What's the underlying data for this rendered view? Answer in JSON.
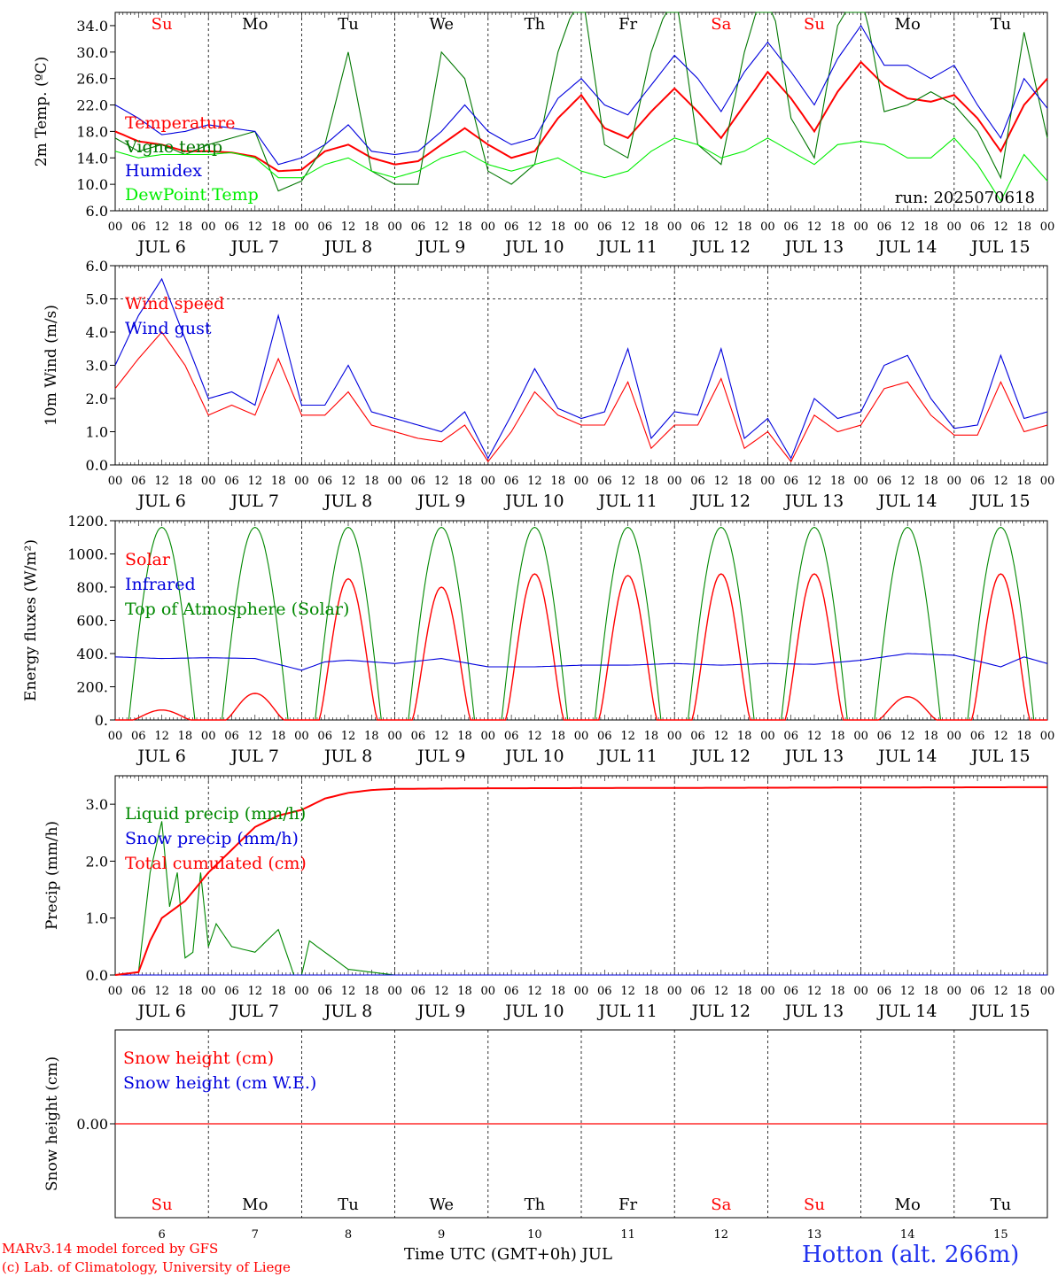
{
  "chart_data": [
    {
      "type": "line",
      "ylabel": "2m Temp. (ºC)",
      "yticks": [
        "6.0",
        "10.0",
        "14.0",
        "18.0",
        "22.0",
        "26.0",
        "30.0",
        "34.0"
      ],
      "ytick_values": [
        6,
        10,
        14,
        18,
        22,
        26,
        30,
        34
      ],
      "ylim": [
        6,
        36
      ],
      "weekdays": [
        "Su",
        "Mo",
        "Tu",
        "We",
        "Th",
        "Fr",
        "Sa",
        "Su",
        "Mo",
        "Tu"
      ],
      "weekday_colors": [
        "#ff0000",
        "#000000",
        "#000000",
        "#000000",
        "#000000",
        "#000000",
        "#ff0000",
        "#ff0000",
        "#000000",
        "#000000"
      ],
      "annotation": "run: 2025070618",
      "series": [
        {
          "name": "Temperature",
          "color": "#ff0000",
          "x": [
            0,
            6,
            12,
            18,
            24,
            30,
            36,
            42,
            48,
            54,
            60,
            66,
            72,
            78,
            84,
            90,
            96,
            102,
            108,
            114,
            120,
            126,
            132,
            138,
            144,
            150,
            156,
            162,
            168,
            174,
            180,
            186,
            192,
            198,
            204,
            210,
            216,
            222,
            228,
            234,
            240
          ],
          "values": [
            18,
            16.5,
            16,
            15,
            15,
            14.8,
            14.2,
            12,
            12.2,
            15,
            16,
            14,
            13,
            13.5,
            16,
            18.5,
            16,
            14,
            15,
            20,
            23.5,
            18.5,
            17,
            21,
            24.5,
            21,
            17,
            22,
            27,
            23,
            18,
            24,
            28.5,
            25,
            23,
            22.5,
            23.5,
            20,
            15,
            22,
            26
          ]
        },
        {
          "name": "Vigne temp",
          "color": "#007700",
          "x": [
            0,
            6,
            12,
            18,
            24,
            30,
            36,
            42,
            48,
            54,
            60,
            66,
            72,
            78,
            84,
            90,
            96,
            102,
            108,
            114,
            120,
            126,
            132,
            138,
            144,
            150,
            156,
            162,
            168,
            174,
            180,
            186,
            192,
            198,
            204,
            210,
            216,
            222,
            228,
            234,
            240
          ],
          "values": [
            17,
            15,
            16,
            14.5,
            16,
            17,
            18,
            9,
            10.5,
            16,
            30,
            12,
            10,
            10,
            30,
            26,
            12,
            10,
            13,
            30,
            40,
            16,
            14,
            30,
            40,
            16,
            13,
            30,
            42,
            20,
            14,
            34,
            40,
            21,
            22,
            24,
            22,
            18,
            11,
            33,
            17
          ]
        },
        {
          "name": "Humidex",
          "color": "#0000dd",
          "x": [
            0,
            6,
            12,
            18,
            24,
            30,
            36,
            42,
            48,
            54,
            60,
            66,
            72,
            78,
            84,
            90,
            96,
            102,
            108,
            114,
            120,
            126,
            132,
            138,
            144,
            150,
            156,
            162,
            168,
            174,
            180,
            186,
            192,
            198,
            204,
            210,
            216,
            222,
            228,
            234,
            240
          ],
          "values": [
            22,
            20,
            17.5,
            18,
            19,
            18.5,
            18,
            13,
            14,
            16,
            19,
            15,
            14.5,
            15,
            18,
            22,
            18,
            16,
            17,
            23,
            26,
            22,
            20.5,
            25,
            29.5,
            26,
            21,
            27,
            31.5,
            27,
            22,
            29,
            34,
            28,
            28,
            26,
            28,
            22,
            17,
            26,
            21.5
          ]
        },
        {
          "name": "DewPoint Temp",
          "color": "#00ee00",
          "x": [
            0,
            6,
            12,
            18,
            24,
            30,
            36,
            42,
            48,
            54,
            60,
            66,
            72,
            78,
            84,
            90,
            96,
            102,
            108,
            114,
            120,
            126,
            132,
            138,
            144,
            150,
            156,
            162,
            168,
            174,
            180,
            186,
            192,
            198,
            204,
            210,
            216,
            222,
            228,
            234,
            240
          ],
          "values": [
            15,
            14,
            14.5,
            14.5,
            14.5,
            14.8,
            14,
            11,
            11,
            13,
            14,
            12,
            11,
            12,
            14,
            15,
            13,
            12,
            13,
            14,
            12,
            11,
            12,
            15,
            17,
            16,
            14,
            15,
            17,
            15,
            13,
            16,
            16.5,
            16,
            14,
            14,
            17,
            13,
            7.5,
            14.5,
            10.5
          ]
        }
      ]
    },
    {
      "type": "line",
      "ylabel": "10m Wind (m/s)",
      "yticks": [
        "0.0",
        "1.0",
        "2.0",
        "3.0",
        "4.0",
        "5.0",
        "6.0"
      ],
      "ytick_values": [
        0,
        1,
        2,
        3,
        4,
        5,
        6
      ],
      "ylim": [
        0,
        6
      ],
      "series": [
        {
          "name": "Wind speed",
          "color": "#ff0000",
          "x": [
            0,
            6,
            12,
            18,
            24,
            30,
            36,
            42,
            48,
            54,
            60,
            66,
            72,
            78,
            84,
            90,
            96,
            102,
            108,
            114,
            120,
            126,
            132,
            138,
            144,
            150,
            156,
            162,
            168,
            174,
            180,
            186,
            192,
            198,
            204,
            210,
            216,
            222,
            228,
            234,
            240
          ],
          "values": [
            2.3,
            3.2,
            4,
            3,
            1.5,
            1.8,
            1.5,
            3.2,
            1.5,
            1.5,
            2.2,
            1.2,
            1,
            0.8,
            0.7,
            1.2,
            0.1,
            1,
            2.2,
            1.5,
            1.2,
            1.2,
            2.5,
            0.5,
            1.2,
            1.2,
            2.6,
            0.5,
            1,
            0.1,
            1.5,
            1,
            1.2,
            2.3,
            2.5,
            1.5,
            0.9,
            0.9,
            2.5,
            1,
            1.2
          ]
        },
        {
          "name": "Wind gust",
          "color": "#0000dd",
          "x": [
            0,
            6,
            12,
            18,
            24,
            30,
            36,
            42,
            48,
            54,
            60,
            66,
            72,
            78,
            84,
            90,
            96,
            102,
            108,
            114,
            120,
            126,
            132,
            138,
            144,
            150,
            156,
            162,
            168,
            174,
            180,
            186,
            192,
            198,
            204,
            210,
            216,
            222,
            228,
            234,
            240
          ],
          "values": [
            3,
            4.5,
            5.6,
            3.8,
            2,
            2.2,
            1.8,
            4.5,
            1.8,
            1.8,
            3,
            1.6,
            1.4,
            1.2,
            1,
            1.6,
            0.2,
            1.5,
            2.9,
            1.7,
            1.4,
            1.6,
            3.5,
            0.8,
            1.6,
            1.5,
            3.5,
            0.8,
            1.4,
            0.2,
            2,
            1.4,
            1.6,
            3,
            3.3,
            2,
            1.1,
            1.2,
            3.3,
            1.4,
            1.6
          ]
        }
      ]
    },
    {
      "type": "line",
      "ylabel": "Energy fluxes (W/m²)",
      "yticks": [
        "0.",
        "200.",
        "400.",
        "600.",
        "800.",
        "1000.",
        "1200."
      ],
      "ytick_values": [
        0,
        200,
        400,
        600,
        800,
        1000,
        1200
      ],
      "ylim": [
        0,
        1200
      ],
      "solar_peaks": [
        60,
        160,
        850,
        800,
        880,
        870,
        880,
        880,
        140,
        880
      ],
      "series": [
        {
          "name": "Solar",
          "color": "#ff0000"
        },
        {
          "name": "Infrared",
          "color": "#0000dd",
          "x": [
            0,
            12,
            24,
            36,
            48,
            54,
            60,
            72,
            84,
            96,
            108,
            120,
            132,
            144,
            156,
            168,
            180,
            192,
            204,
            216,
            228,
            234,
            240
          ],
          "values": [
            380,
            370,
            375,
            370,
            300,
            350,
            360,
            340,
            370,
            320,
            320,
            330,
            330,
            340,
            330,
            340,
            335,
            360,
            400,
            390,
            320,
            380,
            340
          ]
        },
        {
          "name": "Top of Atmosphere (Solar)",
          "color": "#008800",
          "peak": 1160
        }
      ]
    },
    {
      "type": "line",
      "ylabel": "Precip (mm/h)",
      "yticks": [
        "0.0",
        "1.0",
        "2.0",
        "3.0"
      ],
      "ytick_values": [
        0,
        1,
        2,
        3
      ],
      "ylim": [
        0,
        3.5
      ],
      "series": [
        {
          "name": "Liquid precip (mm/h)",
          "color": "#008800",
          "x": [
            0,
            6,
            9,
            12,
            14,
            16,
            18,
            20,
            22,
            24,
            26,
            30,
            36,
            42,
            46,
            48,
            50,
            52,
            56,
            60,
            66,
            72,
            240
          ],
          "values": [
            0,
            0.05,
            1.8,
            2.7,
            1.2,
            1.8,
            0.3,
            0.4,
            1.8,
            0.5,
            0.9,
            0.5,
            0.4,
            0.8,
            0,
            0,
            0.6,
            0.5,
            0.3,
            0.1,
            0.05,
            0,
            0
          ]
        },
        {
          "name": "Snow precip (mm/h)",
          "color": "#0000dd",
          "x": [
            0,
            240
          ],
          "values": [
            0,
            0
          ]
        },
        {
          "name": "Total cumulated (cm)",
          "color": "#ff0000",
          "x": [
            0,
            6,
            9,
            12,
            18,
            24,
            30,
            36,
            42,
            48,
            54,
            60,
            66,
            72,
            96,
            240
          ],
          "values": [
            0,
            0.05,
            0.6,
            1,
            1.3,
            1.8,
            2.2,
            2.6,
            2.8,
            2.9,
            3.1,
            3.2,
            3.25,
            3.27,
            3.28,
            3.3
          ]
        }
      ]
    },
    {
      "type": "line",
      "ylabel": "Snow height (cm)",
      "yticks": [
        "0.00"
      ],
      "ytick_values": [
        0
      ],
      "series": [
        {
          "name": "Snow height (cm)",
          "color": "#ff0000",
          "x": [
            0,
            240
          ],
          "values": [
            0,
            0
          ]
        },
        {
          "name": "Snow height (cm W.E.)",
          "color": "#0000dd",
          "x": [
            0,
            240
          ],
          "values": [
            0,
            0
          ]
        }
      ]
    }
  ],
  "x_axis": {
    "hour_labels": [
      "00",
      "06",
      "12",
      "18"
    ],
    "end_label": "00",
    "day_labels": [
      "JUL  6",
      "JUL  7",
      "JUL  8",
      "JUL  9",
      "JUL 10",
      "JUL 11",
      "JUL 12",
      "JUL 13",
      "JUL 14",
      "JUL 15"
    ],
    "bottom_days": [
      "6",
      "7",
      "8",
      "9",
      "10",
      "11",
      "12",
      "13",
      "14",
      "15"
    ],
    "xlabel": "Time UTC (GMT+0h) JUL"
  },
  "footer": {
    "credit1": "MARv3.14 model forced by GFS",
    "credit2": "(c) Lab. of Climatology, University of Liege",
    "location": "Hotton (alt. 266m)"
  }
}
